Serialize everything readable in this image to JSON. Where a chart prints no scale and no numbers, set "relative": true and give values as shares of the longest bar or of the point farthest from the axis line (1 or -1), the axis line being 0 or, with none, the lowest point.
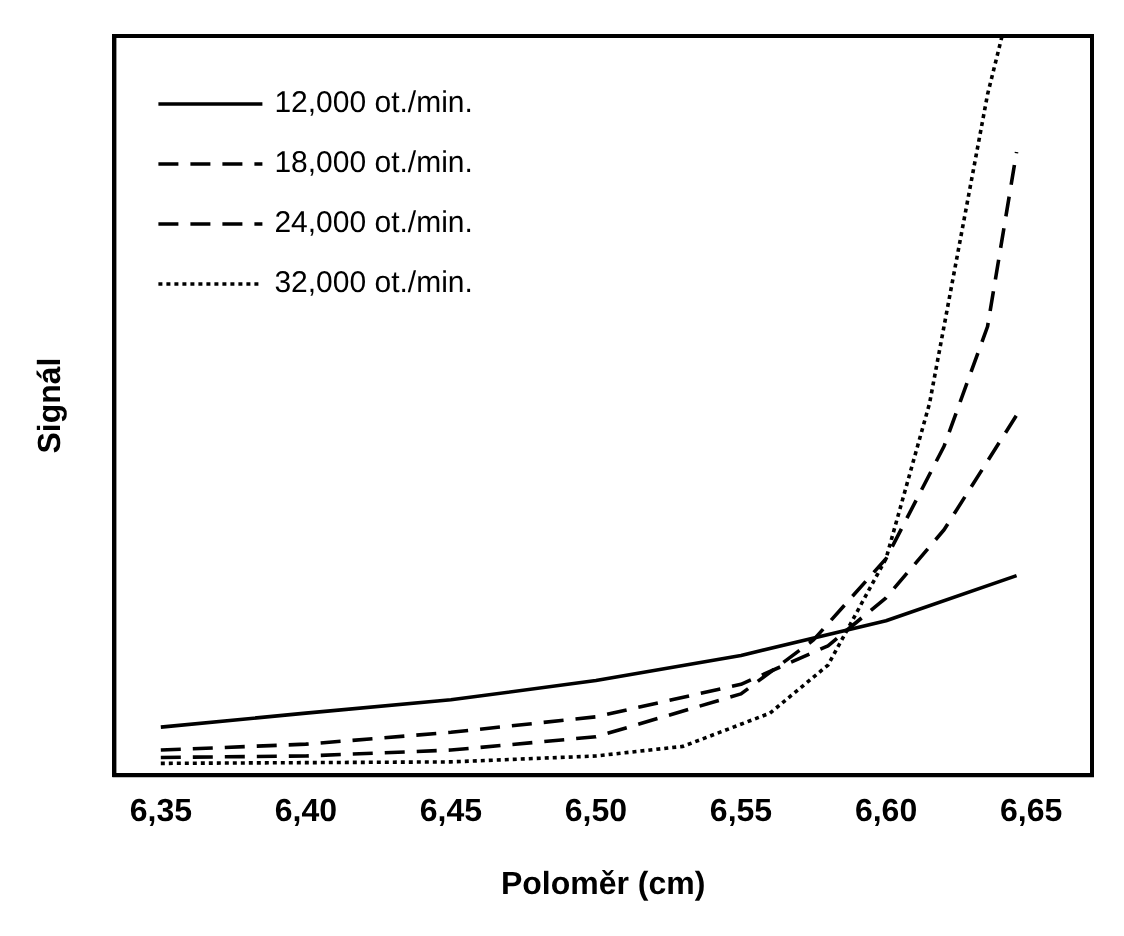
{
  "chart_data": {
    "type": "line",
    "xlabel": "Poloměr (cm)",
    "ylabel": "Signál",
    "relative": true,
    "xlim": [
      6.334,
      6.671
    ],
    "xticks": [
      {
        "value": 6.35,
        "label": "6,35"
      },
      {
        "value": 6.4,
        "label": "6,40"
      },
      {
        "value": 6.45,
        "label": "6,45"
      },
      {
        "value": 6.5,
        "label": "6,50"
      },
      {
        "value": 6.55,
        "label": "6,55"
      },
      {
        "value": 6.6,
        "label": "6,60"
      },
      {
        "value": 6.65,
        "label": "6,65"
      }
    ],
    "legend": "top left",
    "grid": false,
    "marker": "none",
    "series": [
      {
        "name": "12,000 ot./min.",
        "color": "#000000",
        "line_style": "solid",
        "x": [
          6.35,
          6.4,
          6.45,
          6.5,
          6.55,
          6.6,
          6.645
        ],
        "values": [
          0.065,
          0.084,
          0.102,
          0.128,
          0.162,
          0.209,
          0.27
        ]
      },
      {
        "name": "18,000 ot./min.",
        "color": "#000000",
        "line_style": "dashed",
        "x": [
          6.35,
          6.4,
          6.45,
          6.5,
          6.55,
          6.58,
          6.6,
          6.62,
          6.645
        ],
        "values": [
          0.034,
          0.042,
          0.058,
          0.079,
          0.123,
          0.175,
          0.24,
          0.332,
          0.487
        ]
      },
      {
        "name": "24,000 ot./min.",
        "color": "#000000",
        "line_style": "dashed",
        "x": [
          6.35,
          6.4,
          6.45,
          6.5,
          6.55,
          6.575,
          6.6,
          6.62,
          6.635,
          6.645
        ],
        "values": [
          0.024,
          0.026,
          0.034,
          0.052,
          0.11,
          0.183,
          0.293,
          0.445,
          0.607,
          0.843
        ]
      },
      {
        "name": "32,000 ot./min.",
        "color": "#000000",
        "line_style": "dotted",
        "x": [
          6.35,
          6.45,
          6.5,
          6.53,
          6.56,
          6.58,
          6.6,
          6.615,
          6.625,
          6.635,
          6.64
        ],
        "values": [
          0.016,
          0.018,
          0.026,
          0.039,
          0.084,
          0.149,
          0.293,
          0.503,
          0.712,
          0.921,
          1
        ]
      }
    ]
  }
}
